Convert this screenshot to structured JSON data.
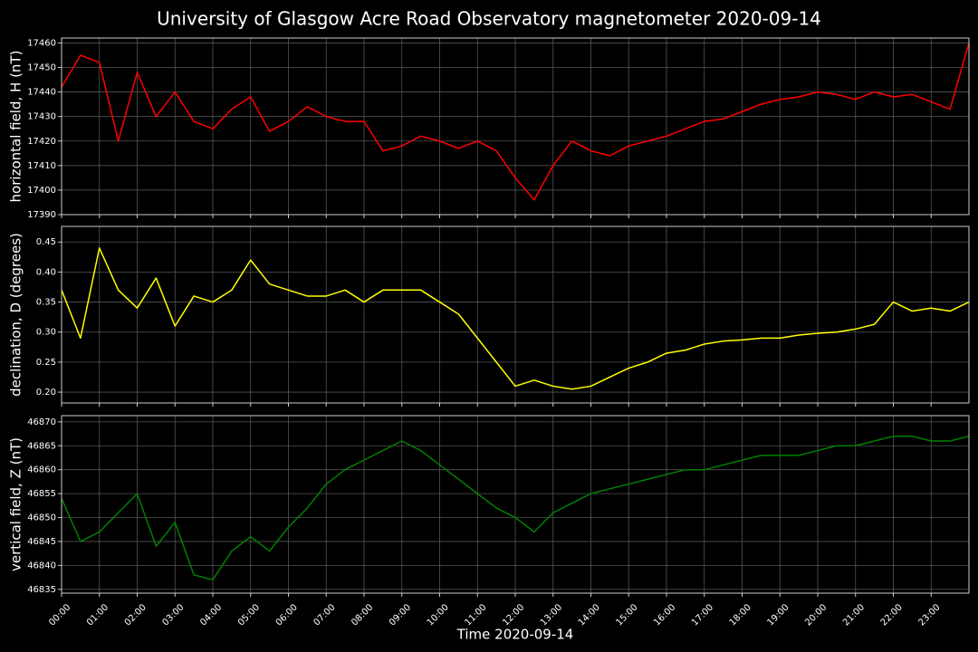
{
  "title": "University of Glasgow Acre Road Observatory magnetometer 2020-09-14",
  "chart_data": [
    {
      "type": "line",
      "ylabel": "horizontal field, H (nT)",
      "color": "#ff0000",
      "x": [
        0,
        0.5,
        1,
        1.5,
        2,
        2.5,
        3,
        3.5,
        4,
        4.5,
        5,
        5.5,
        6,
        6.5,
        7,
        7.5,
        8,
        8.5,
        9,
        9.5,
        10,
        10.5,
        11,
        11.5,
        12,
        12.5,
        13,
        13.5,
        14,
        14.5,
        15,
        15.5,
        16,
        16.5,
        17,
        17.5,
        18,
        18.5,
        19,
        19.5,
        20,
        20.5,
        21,
        21.5,
        22,
        22.5,
        23,
        23.5,
        24
      ],
      "values": [
        17442,
        17455,
        17452,
        17420,
        17448,
        17430,
        17440,
        17428,
        17425,
        17433,
        17438,
        17424,
        17428,
        17434,
        17430,
        17428,
        17428,
        17416,
        17418,
        17422,
        17420,
        17417,
        17420,
        17416,
        17405,
        17396,
        17410,
        17420,
        17416,
        17414,
        17418,
        17420,
        17422,
        17425,
        17428,
        17429,
        17432,
        17435,
        17437,
        17438,
        17440,
        17439,
        17437,
        17440,
        17438,
        17439,
        17436,
        17433,
        17460
      ],
      "xlim": [
        0,
        24
      ],
      "ylim": [
        17390,
        17462
      ],
      "yticks": [
        17390,
        17400,
        17410,
        17420,
        17430,
        17440,
        17450,
        17460
      ],
      "grid": true
    },
    {
      "type": "line",
      "ylabel": "declination, D (degrees)",
      "color": "#ffff00",
      "x": [
        0,
        0.5,
        1,
        1.5,
        2,
        2.5,
        3,
        3.5,
        4,
        4.5,
        5,
        5.5,
        6,
        6.5,
        7,
        7.5,
        8,
        8.5,
        9,
        9.5,
        10,
        10.5,
        11,
        11.5,
        12,
        12.5,
        13,
        13.5,
        14,
        14.5,
        15,
        15.5,
        16,
        16.5,
        17,
        17.5,
        18,
        18.5,
        19,
        19.5,
        20,
        20.5,
        21,
        21.5,
        22,
        22.5,
        23,
        23.5,
        24
      ],
      "values": [
        0.37,
        0.29,
        0.44,
        0.37,
        0.34,
        0.39,
        0.31,
        0.36,
        0.35,
        0.37,
        0.42,
        0.38,
        0.37,
        0.36,
        0.36,
        0.37,
        0.35,
        0.37,
        0.37,
        0.37,
        0.35,
        0.33,
        0.29,
        0.25,
        0.21,
        0.22,
        0.21,
        0.205,
        0.21,
        0.225,
        0.24,
        0.25,
        0.265,
        0.27,
        0.28,
        0.285,
        0.287,
        0.29,
        0.29,
        0.295,
        0.298,
        0.3,
        0.305,
        0.313,
        0.35,
        0.335,
        0.34,
        0.335,
        0.35
      ],
      "xlim": [
        0,
        24
      ],
      "ylim": [
        0.182,
        0.476
      ],
      "yticks": [
        {
          "value": 0.2,
          "label": "0.20"
        },
        0.25,
        {
          "value": 0.3,
          "label": "0.30"
        },
        0.35,
        {
          "value": 0.4,
          "label": "0.40"
        },
        0.45
      ],
      "grid": true
    },
    {
      "type": "line",
      "ylabel": "vertical field, Z (nT)",
      "xlabel": "Time 2020-09-14",
      "color": "#008000",
      "x": [
        0,
        0.5,
        1,
        1.5,
        2,
        2.5,
        3,
        3.5,
        4,
        4.5,
        5,
        5.5,
        6,
        6.5,
        7,
        7.5,
        8,
        8.5,
        9,
        9.5,
        10,
        10.5,
        11,
        11.5,
        12,
        12.5,
        13,
        13.5,
        14,
        14.5,
        15,
        15.5,
        16,
        16.5,
        17,
        17.5,
        18,
        18.5,
        19,
        19.5,
        20,
        20.5,
        21,
        21.5,
        22,
        22.5,
        23,
        23.5,
        24
      ],
      "values": [
        46854,
        46845,
        46847,
        46851,
        46855,
        46844,
        46849,
        46838,
        46837,
        46843,
        46846,
        46843,
        46848,
        46852,
        46857,
        46860,
        46862,
        46864,
        46866,
        46864,
        46861,
        46858,
        46855,
        46852,
        46850,
        46847,
        46851,
        46853,
        46855,
        46856,
        46857,
        46858,
        46859,
        46860,
        46860,
        46861,
        46862,
        46863,
        46863,
        46863,
        46864,
        46865,
        46865,
        46866,
        46867,
        46867,
        46866,
        46866,
        46867
      ],
      "xlim": [
        0,
        24
      ],
      "ylim": [
        46834.2,
        46871.3
      ],
      "yticks": [
        46835,
        46840,
        46845,
        46850,
        46855,
        46860,
        46865,
        46870
      ],
      "xticks": [
        {
          "value": 0,
          "label": "00:00"
        },
        {
          "value": 1,
          "label": "01:00"
        },
        {
          "value": 2,
          "label": "02:00"
        },
        {
          "value": 3,
          "label": "03:00"
        },
        {
          "value": 4,
          "label": "04:00"
        },
        {
          "value": 5,
          "label": "05:00"
        },
        {
          "value": 6,
          "label": "06:00"
        },
        {
          "value": 7,
          "label": "07:00"
        },
        {
          "value": 8,
          "label": "08:00"
        },
        {
          "value": 9,
          "label": "09:00"
        },
        {
          "value": 10,
          "label": "10:00"
        },
        {
          "value": 11,
          "label": "11:00"
        },
        {
          "value": 12,
          "label": "12:00"
        },
        {
          "value": 13,
          "label": "13:00"
        },
        {
          "value": 14,
          "label": "14:00"
        },
        {
          "value": 15,
          "label": "15:00"
        },
        {
          "value": 16,
          "label": "16:00"
        },
        {
          "value": 17,
          "label": "17:00"
        },
        {
          "value": 18,
          "label": "18:00"
        },
        {
          "value": 19,
          "label": "19:00"
        },
        {
          "value": 20,
          "label": "20:00"
        },
        {
          "value": 21,
          "label": "21:00"
        },
        {
          "value": 22,
          "label": "22:00"
        },
        {
          "value": 23,
          "label": "23:00"
        }
      ],
      "grid": true
    }
  ]
}
